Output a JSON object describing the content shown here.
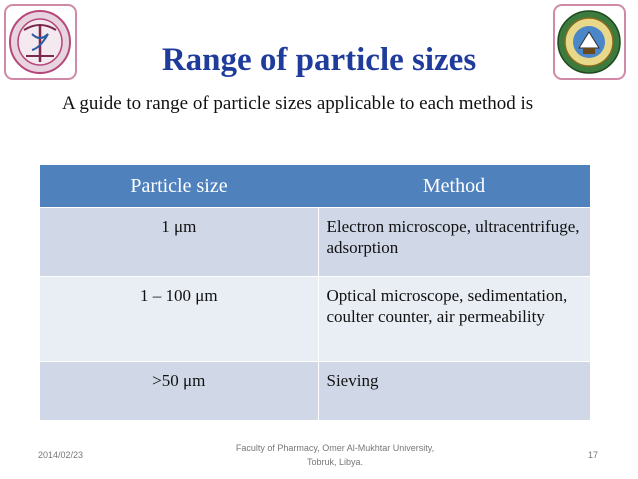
{
  "slide": {
    "title": "Range of particle sizes",
    "intro": "A guide to range of particle sizes applicable to each method is"
  },
  "table": {
    "headers": [
      "Particle size",
      "Method"
    ],
    "rows": [
      [
        "1 μm",
        "Electron microscope, ultracentrifuge, adsorption"
      ],
      [
        "1 – 100 μm",
        "Optical microscope, sedimentation, coulter counter, air permeability"
      ],
      [
        ">50 μm",
        "Sieving"
      ]
    ]
  },
  "footer": {
    "date": "2014/02/23",
    "line1": "Faculty of Pharmacy, Omer Al-Mukhtar University,",
    "line2": "Tobruk, Libya.",
    "page": "17"
  },
  "colors": {
    "title": "#1f3c9c",
    "header_bg": "#4f81bd",
    "row_dark": "#d0d8e8",
    "row_light": "#e9edf4"
  },
  "icons": [
    "pharmacy-logo-icon",
    "university-seal-icon"
  ]
}
